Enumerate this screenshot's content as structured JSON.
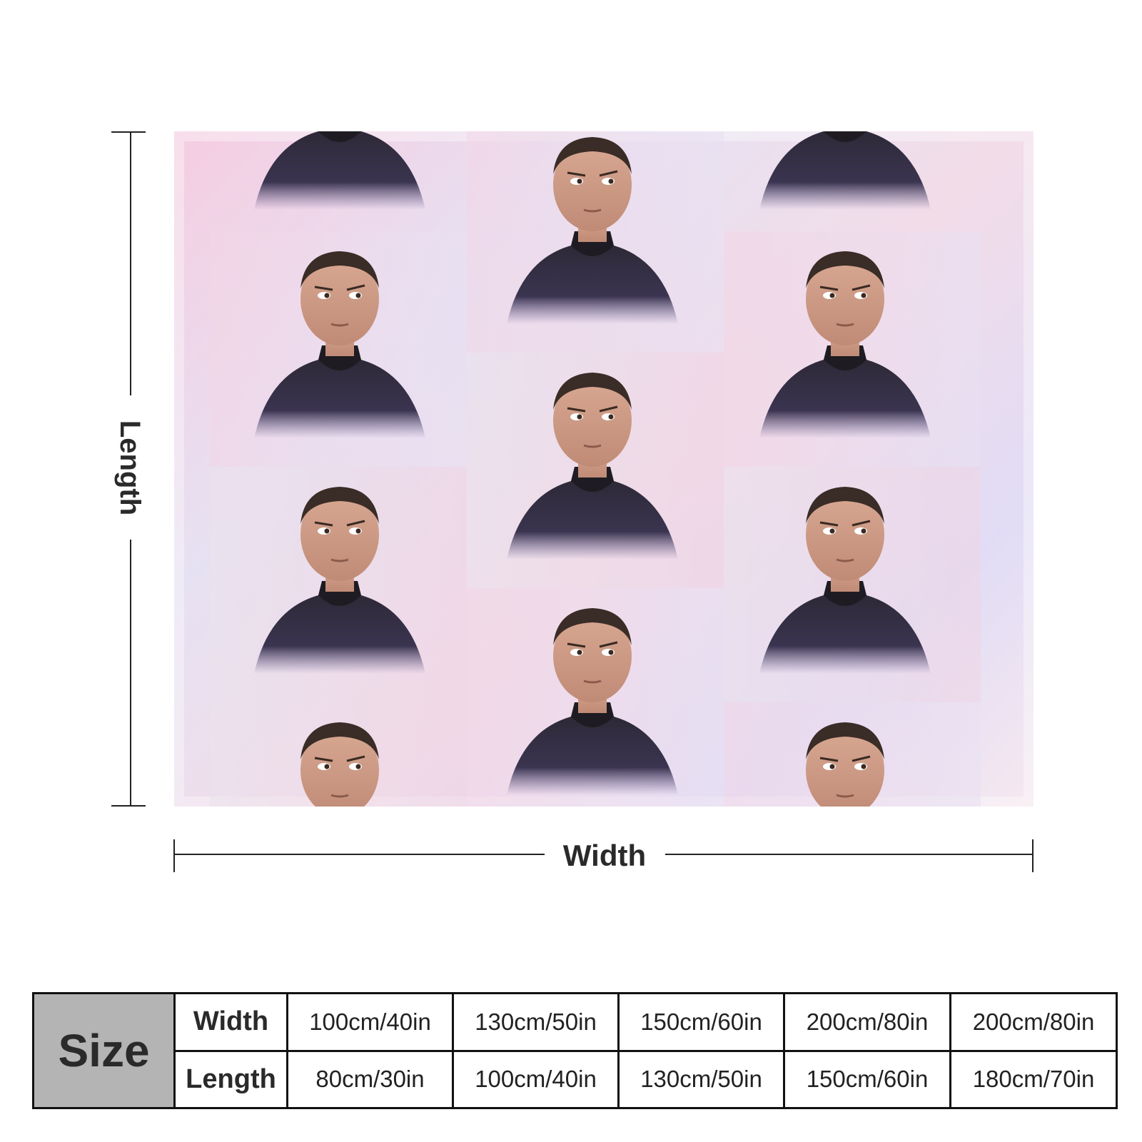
{
  "diagram": {
    "length_label": "Length",
    "width_label": "Width"
  },
  "size_table": {
    "header": "Size",
    "rows": [
      {
        "label": "Width",
        "values": [
          "100cm/40in",
          "130cm/50in",
          "150cm/60in",
          "200cm/80in",
          "200cm/80in"
        ]
      },
      {
        "label": "Length",
        "values": [
          "80cm/30in",
          "100cm/40in",
          "130cm/50in",
          "150cm/60in",
          "180cm/70in"
        ]
      }
    ]
  },
  "colors": {
    "background": "#ffffff",
    "table_header_fill": "#b4b4b4",
    "line": "#222222"
  }
}
